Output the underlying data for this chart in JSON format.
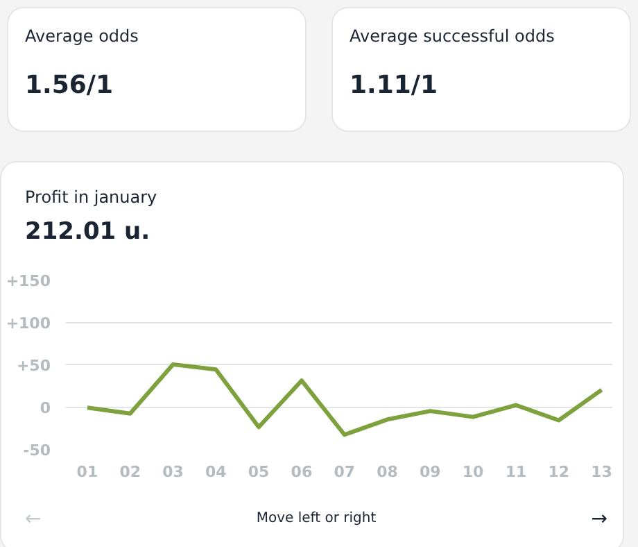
{
  "chart_data": {
    "type": "line",
    "title": "Profit in january",
    "subtitle": "212.01 u.",
    "categories": [
      "01",
      "02",
      "03",
      "04",
      "05",
      "06",
      "07",
      "08",
      "09",
      "10",
      "11",
      "12",
      "13"
    ],
    "series": [
      {
        "color": "#7da13d",
        "values": [
          -1,
          -8,
          50,
          44,
          -24,
          31,
          -33,
          -15,
          -5,
          -12,
          2,
          -16,
          20
        ]
      }
    ],
    "ylim": [
      -50,
      150
    ],
    "yticks": [
      -50,
      0,
      {
        "value": 50,
        "label": "+50"
      },
      {
        "value": 100,
        "label": "+100"
      },
      {
        "value": 150,
        "label": "+150"
      }
    ],
    "grid": "y",
    "marker": "none",
    "line_style": "solid",
    "annotations": [
      "Average odds",
      "1.56/1",
      "Average successful odds",
      "1.11/1",
      "Move left or right",
      "←",
      "→"
    ]
  }
}
